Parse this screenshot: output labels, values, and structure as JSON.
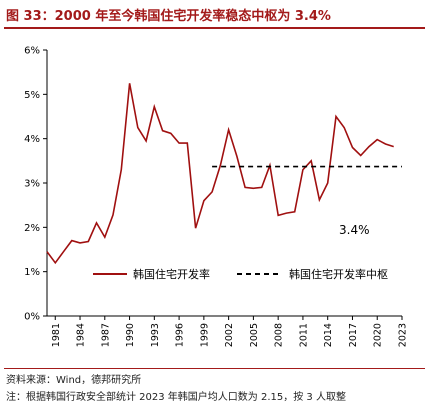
{
  "header": {
    "title": "图 33：2000 年至今韩国住宅开发率稳态中枢为 3.4%"
  },
  "footer": {
    "source": "资料来源：Wind，德邦研究所",
    "note": "注：根据韩国行政安全部统计 2023 年韩国户均人口数为 2.15，按 3 人取整"
  },
  "colors": {
    "accent": "#a31a1a",
    "series_line": "#a01010",
    "reference_line": "#000000"
  },
  "chart_data": {
    "type": "line",
    "title": "",
    "xlabel": "",
    "ylabel": "",
    "ylim": [
      0,
      6
    ],
    "yticks": [
      "0%",
      "1%",
      "2%",
      "3%",
      "4%",
      "5%",
      "6%"
    ],
    "xlim": [
      1981,
      2023
    ],
    "xticks": [
      "1981",
      "1984",
      "1987",
      "1990",
      "1993",
      "1996",
      "1999",
      "2002",
      "2005",
      "2008",
      "2011",
      "2014",
      "2017",
      "2020",
      "2023"
    ],
    "grid": false,
    "legend_position": "middle-center",
    "annotation": "3.4%",
    "series": [
      {
        "name": "韩国住宅开发率",
        "style": "solid",
        "x": [
          1980,
          1981,
          1982,
          1983,
          1984,
          1985,
          1986,
          1987,
          1988,
          1989,
          1990,
          1991,
          1992,
          1993,
          1994,
          1995,
          1996,
          1997,
          1998,
          1999,
          2000,
          2001,
          2002,
          2003,
          2004,
          2005,
          2006,
          2007,
          2008,
          2009,
          2010,
          2011,
          2012,
          2013,
          2014,
          2015,
          2016,
          2017,
          2018,
          2019,
          2020,
          2021,
          2022,
          2023
        ],
        "values": [
          1.45,
          1.2,
          1.45,
          1.7,
          1.65,
          1.68,
          2.1,
          1.78,
          2.28,
          3.3,
          5.25,
          4.25,
          3.95,
          4.72,
          4.18,
          4.12,
          3.9,
          3.9,
          1.98,
          2.6,
          2.8,
          3.4,
          4.2,
          3.6,
          2.9,
          2.88,
          2.9,
          3.4,
          2.27,
          2.32,
          2.35,
          3.3,
          3.5,
          2.62,
          3.0,
          4.5,
          4.25,
          3.8,
          3.62,
          3.82,
          3.98,
          3.88,
          3.82,
          null
        ]
      },
      {
        "name": "韩国住宅开发率中枢",
        "style": "dashed",
        "x": [
          2000,
          2023
        ],
        "values": [
          3.37,
          3.37
        ]
      }
    ]
  }
}
